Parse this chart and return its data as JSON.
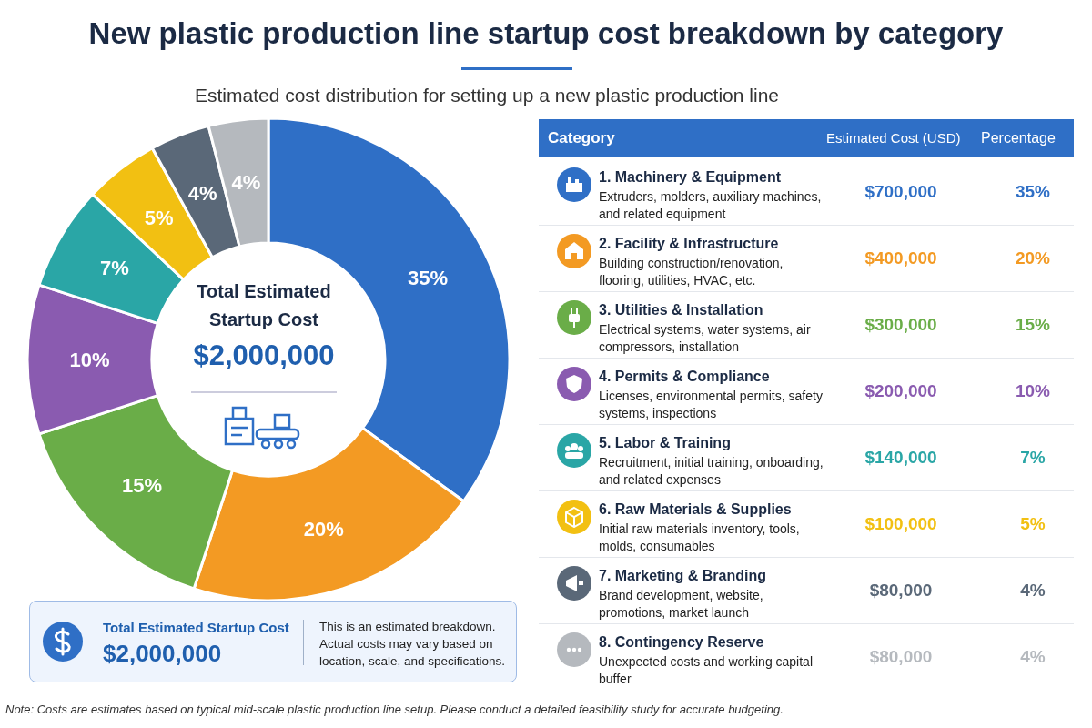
{
  "chart_data": {
    "type": "donut",
    "title": "New plastic production line startup cost breakdown by category",
    "subtitle": "Estimated cost distribution for setting up a new plastic production line",
    "categories": [
      "1. Machinery & Equipment",
      "2. Facility & Infrastructure",
      "3. Utilities & Installation",
      "4. Permits & Compliance",
      "5. Labor & Training",
      "6. Raw Materials & Supplies",
      "7. Marketing & Branding",
      "8. Contingency Reserve"
    ],
    "values": [
      35,
      20,
      15,
      10,
      7,
      5,
      4,
      4
    ],
    "value_labels": [
      "35%",
      "20%",
      "15%",
      "10%",
      "7%",
      "5%",
      "4%",
      "4%"
    ],
    "colors": [
      "#2f6fc6",
      "#f39a23",
      "#6aad48",
      "#8a5bb0",
      "#2aa6a6",
      "#f2c012",
      "#5a6878",
      "#b5b9be"
    ],
    "legend": "right",
    "annotations": [
      "Total Estimated Startup Cost",
      "$2,000,000",
      "Category",
      "Estimated Cost (USD)",
      "Percentage",
      "Extruders, molders, auxiliary machines, and related equipment",
      "Building construction/renovation, flooring, utilities, HVAC, etc.",
      "Electrical systems, water systems, air compressors, installation",
      "Licenses, environmental permits, safety systems, inspections",
      "Recruitment, initial training, onboarding, and related expenses",
      "Initial raw materials inventory, tools, molds, consumables",
      "Brand development, website, promotions, market launch",
      "Unexpected costs and working capital buffer",
      "$700,000",
      "$400,000",
      "$300,000",
      "$200,000",
      "$140,000",
      "$100,000",
      "$80,000",
      "$80,000",
      "Total Estimated Startup Cost",
      "$2,000,000",
      "This is an estimated breakdown. Actual costs may vary based on location, scale, and specifications.",
      "Note: Costs are estimates based on typical mid-scale plastic production line setup. Please conduct a detailed feasibility study for accurate budgeting."
    ]
  }
}
